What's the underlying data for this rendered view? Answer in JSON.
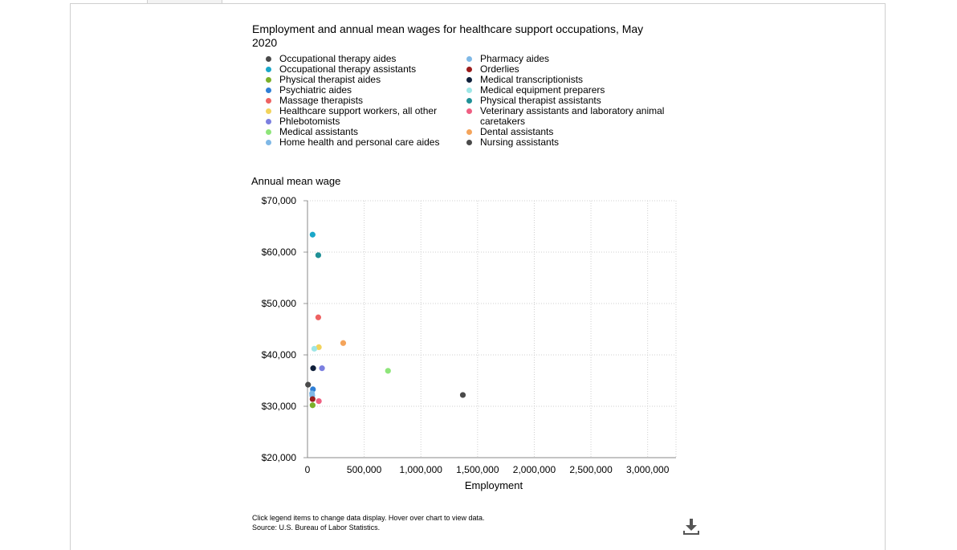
{
  "chart_data": {
    "type": "scatter",
    "title": "Employment and annual mean wages for healthcare support occupations, May 2020",
    "xlabel": "Employment",
    "ylabel": "Annual mean wage",
    "xlim": [
      0,
      3250000
    ],
    "ylim": [
      20000,
      70000
    ],
    "x_ticks": [
      0,
      500000,
      1000000,
      1500000,
      2000000,
      2500000,
      3000000
    ],
    "x_tick_labels": [
      "0",
      "500,000",
      "1,000,000",
      "1,500,000",
      "2,000,000",
      "2,500,000",
      "3,000,000"
    ],
    "y_ticks": [
      20000,
      30000,
      40000,
      50000,
      60000,
      70000
    ],
    "y_tick_labels": [
      "$20,000",
      "$30,000",
      "$40,000",
      "$50,000",
      "$60,000",
      "$70,000"
    ],
    "grid": true,
    "series": [
      {
        "name": "Occupational therapy aides",
        "color": "#4a4a4a",
        "x": 5000,
        "y": 34200
      },
      {
        "name": "Occupational therapy assistants",
        "color": "#1aa7c9",
        "x": 45000,
        "y": 63400
      },
      {
        "name": "Physical therapist aides",
        "color": "#7bb02a",
        "x": 45000,
        "y": 30200
      },
      {
        "name": "Psychiatric aides",
        "color": "#2f7fd6",
        "x": 48000,
        "y": 33300
      },
      {
        "name": "Massage therapists",
        "color": "#ee6262",
        "x": 95000,
        "y": 47300
      },
      {
        "name": "Healthcare support workers, all other",
        "color": "#f2d35c",
        "x": 100000,
        "y": 41500
      },
      {
        "name": "Phlebotomists",
        "color": "#7b7fe0",
        "x": 128000,
        "y": 37400
      },
      {
        "name": "Medical assistants",
        "color": "#8ee57a",
        "x": 710000,
        "y": 36900
      },
      {
        "name": "Home health and personal care aides",
        "color": "#7fb8e6",
        "x": 40000,
        "y": 32500
      },
      {
        "name": "Pharmacy aides",
        "color": "#7fb8e6",
        "x": 42000,
        "y": 32100
      },
      {
        "name": "Orderlies",
        "color": "#9b1c1c",
        "x": 45000,
        "y": 31400
      },
      {
        "name": "Medical transcriptionists",
        "color": "#0f1f3a",
        "x": 50000,
        "y": 37400
      },
      {
        "name": "Medical equipment preparers",
        "color": "#9de6e6",
        "x": 60000,
        "y": 41200
      },
      {
        "name": "Physical therapist assistants",
        "color": "#1f9096",
        "x": 95000,
        "y": 59400
      },
      {
        "name": "Veterinary assistants and laboratory animal caretakers",
        "color": "#ef5f82",
        "x": 100000,
        "y": 31000
      },
      {
        "name": "Dental assistants",
        "color": "#f4a45b",
        "x": 315000,
        "y": 42300
      },
      {
        "name": "Nursing assistants",
        "color": "#4a4a4a",
        "x": 1370000,
        "y": 32200
      }
    ]
  },
  "legend_left": [
    "Occupational therapy aides",
    "Occupational therapy assistants",
    "Physical therapist aides",
    "Psychiatric aides",
    "Massage therapists",
    "Healthcare support workers, all other",
    "Phlebotomists",
    "Medical assistants",
    "Home health and personal care aides"
  ],
  "legend_right": [
    "Pharmacy aides",
    "Orderlies",
    "Medical transcriptionists",
    "Medical equipment preparers",
    "Physical therapist assistants",
    "Veterinary assistants and laboratory animal caretakers",
    "Dental assistants",
    "Nursing assistants"
  ],
  "footer": {
    "note": "Click legend items to change data display. Hover over chart to view data.",
    "source": "Source: U.S. Bureau of Labor Statistics."
  },
  "icons": {
    "download": "download-icon"
  }
}
